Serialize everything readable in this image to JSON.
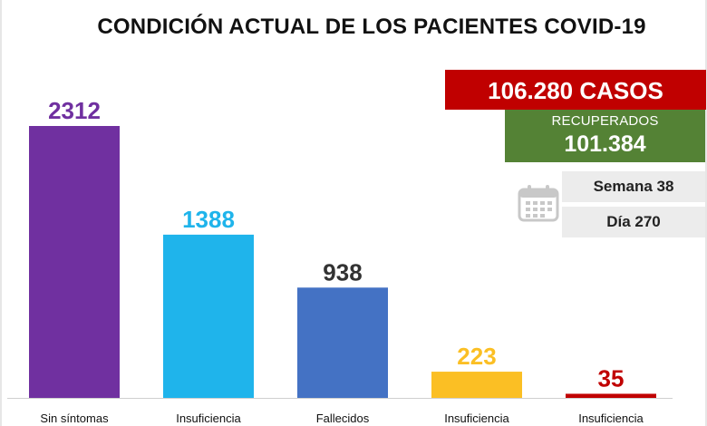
{
  "chart_data": {
    "type": "bar",
    "title": "CONDICIÓN ACTUAL DE LOS PACIENTES COVID-19",
    "categories": [
      "Sin síntomas",
      "Insuficiencia",
      "Fallecidos",
      "Insuficiencia",
      "Insuficiencia"
    ],
    "values": [
      2312,
      1388,
      938,
      223,
      35
    ],
    "colors": [
      "#7030a0",
      "#1fb4eb",
      "#4472c4",
      "#fbbf24",
      "#c00000"
    ],
    "value_label_colors": [
      "#7030a0",
      "#1fb4eb",
      "#333333",
      "#fbbf24",
      "#c00000"
    ],
    "ylim": [
      0,
      2500
    ],
    "grid": false,
    "xlabel": "",
    "ylabel": ""
  },
  "cases": {
    "text": "106.280 CASOS",
    "color": "#c00000"
  },
  "recovered": {
    "label": "RECUPERADOS",
    "value": "101.384",
    "color": "#548235"
  },
  "calendar": {
    "icon": "calendar-icon"
  },
  "week": "Semana 38",
  "day": "Día 270"
}
